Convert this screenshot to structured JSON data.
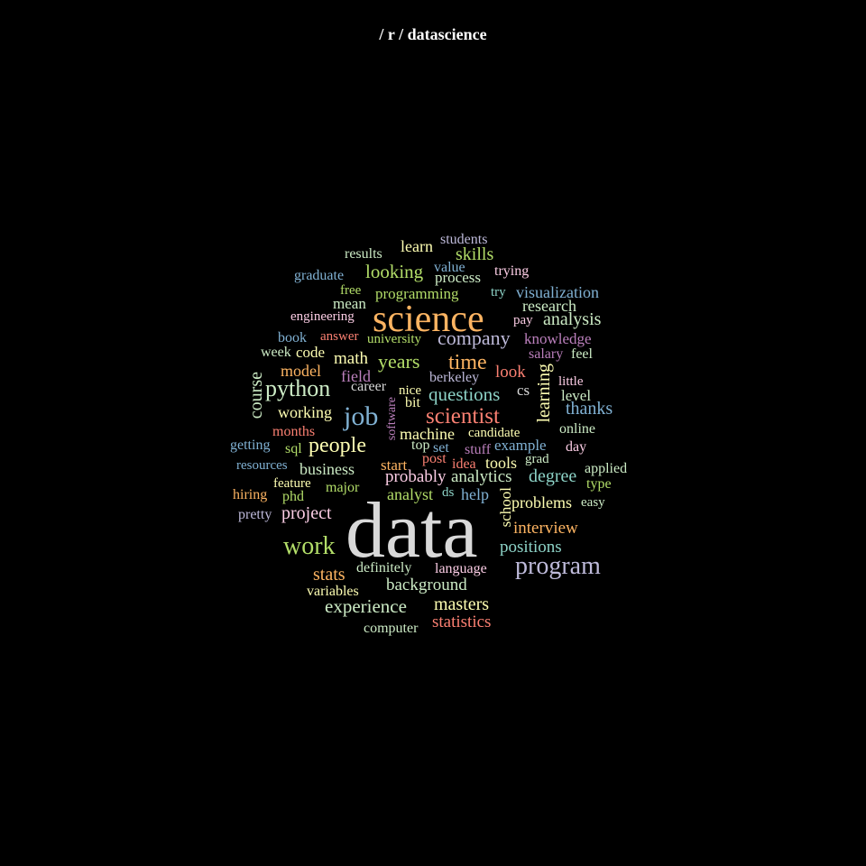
{
  "title": "/ r / datascience",
  "palette": {
    "green": "#b3de69",
    "mint": "#ccebc5",
    "teal": "#8dd3c7",
    "yellow": "#ffffb3",
    "orange": "#fdb462",
    "red": "#fb8072",
    "blue": "#80b1d3",
    "lavender": "#bebada",
    "purple": "#bc80bd",
    "pink": "#fccde5",
    "gray": "#d9d9d9"
  },
  "words": [
    {
      "text": "data",
      "color": "#d9d9d9"
    },
    {
      "text": "science",
      "color": "#fdb462"
    },
    {
      "text": "job",
      "color": "#80b1d3"
    },
    {
      "text": "program",
      "color": "#bebada"
    },
    {
      "text": "work",
      "color": "#b3de69"
    },
    {
      "text": "python",
      "color": "#ccebc5"
    },
    {
      "text": "scientist",
      "color": "#fb8072"
    },
    {
      "text": "people",
      "color": "#ffffb3"
    },
    {
      "text": "company",
      "color": "#bebada"
    },
    {
      "text": "time",
      "color": "#fdb462"
    },
    {
      "text": "years",
      "color": "#b3de69"
    },
    {
      "text": "questions",
      "color": "#8dd3c7"
    },
    {
      "text": "course",
      "color": "#ccebc5"
    },
    {
      "text": "learning",
      "color": "#ffffb3"
    },
    {
      "text": "experience",
      "color": "#ccebc5"
    },
    {
      "text": "masters",
      "color": "#ffffb3"
    },
    {
      "text": "statistics",
      "color": "#fb8072"
    },
    {
      "text": "analysis",
      "color": "#ccebc5"
    },
    {
      "text": "thanks",
      "color": "#80b1d3"
    },
    {
      "text": "looking",
      "color": "#b3de69"
    },
    {
      "text": "skills",
      "color": "#b3de69"
    },
    {
      "text": "visualization",
      "color": "#80b1d3"
    },
    {
      "text": "project",
      "color": "#fccde5"
    },
    {
      "text": "positions",
      "color": "#8dd3c7"
    },
    {
      "text": "interview",
      "color": "#fdb462"
    },
    {
      "text": "degree",
      "color": "#8dd3c7"
    },
    {
      "text": "analytics",
      "color": "#ccebc5"
    },
    {
      "text": "probably",
      "color": "#fccde5"
    },
    {
      "text": "background",
      "color": "#ccebc5"
    },
    {
      "text": "problems",
      "color": "#ffffb3"
    },
    {
      "text": "machine",
      "color": "#ffffb3"
    },
    {
      "text": "working",
      "color": "#ffffb3"
    },
    {
      "text": "business",
      "color": "#ccebc5"
    },
    {
      "text": "stats",
      "color": "#fdb462"
    },
    {
      "text": "math",
      "color": "#ffffb3"
    },
    {
      "text": "model",
      "color": "#fdb462"
    },
    {
      "text": "look",
      "color": "#fb8072"
    },
    {
      "text": "research",
      "color": "#ccebc5"
    },
    {
      "text": "programming",
      "color": "#b3de69"
    },
    {
      "text": "learn",
      "color": "#ffffb3"
    },
    {
      "text": "mean",
      "color": "#ccebc5"
    },
    {
      "text": "process",
      "color": "#ccebc5"
    },
    {
      "text": "field",
      "color": "#bc80bd"
    },
    {
      "text": "analyst",
      "color": "#b3de69"
    },
    {
      "text": "tools",
      "color": "#ffffb3"
    },
    {
      "text": "help",
      "color": "#80b1d3"
    },
    {
      "text": "school",
      "color": "#ffffb3"
    },
    {
      "text": "language",
      "color": "#fccde5"
    },
    {
      "text": "variables",
      "color": "#ffffb3"
    },
    {
      "text": "computer",
      "color": "#ccebc5"
    },
    {
      "text": "definitely",
      "color": "#ccebc5"
    },
    {
      "text": "knowledge",
      "color": "#bc80bd"
    },
    {
      "text": "example",
      "color": "#80b1d3"
    },
    {
      "text": "start",
      "color": "#fdb462"
    },
    {
      "text": "code",
      "color": "#ffffb3"
    },
    {
      "text": "career",
      "color": "#d9d9d9"
    },
    {
      "text": "students",
      "color": "#bebada"
    },
    {
      "text": "results",
      "color": "#ccebc5"
    },
    {
      "text": "trying",
      "color": "#fccde5"
    },
    {
      "text": "value",
      "color": "#80b1d3"
    },
    {
      "text": "graduate",
      "color": "#80b1d3"
    },
    {
      "text": "free",
      "color": "#b3de69"
    },
    {
      "text": "try",
      "color": "#8dd3c7"
    },
    {
      "text": "engineering",
      "color": "#fccde5"
    },
    {
      "text": "university",
      "color": "#b3de69"
    },
    {
      "text": "pay",
      "color": "#fccde5"
    },
    {
      "text": "book",
      "color": "#80b1d3"
    },
    {
      "text": "answer",
      "color": "#fb8072"
    },
    {
      "text": "week",
      "color": "#ccebc5"
    },
    {
      "text": "salary",
      "color": "#bc80bd"
    },
    {
      "text": "feel",
      "color": "#ccebc5"
    },
    {
      "text": "berkeley",
      "color": "#bebada"
    },
    {
      "text": "nice",
      "color": "#ffffb3"
    },
    {
      "text": "bit",
      "color": "#ffffb3"
    },
    {
      "text": "cs",
      "color": "#d9d9d9"
    },
    {
      "text": "little",
      "color": "#fccde5"
    },
    {
      "text": "level",
      "color": "#ccebc5"
    },
    {
      "text": "software",
      "color": "#bc80bd"
    },
    {
      "text": "online",
      "color": "#ccebc5"
    },
    {
      "text": "months",
      "color": "#fb8072"
    },
    {
      "text": "candidate",
      "color": "#ffffb3"
    },
    {
      "text": "getting",
      "color": "#80b1d3"
    },
    {
      "text": "sql",
      "color": "#b3de69"
    },
    {
      "text": "top",
      "color": "#ccebc5"
    },
    {
      "text": "set",
      "color": "#80b1d3"
    },
    {
      "text": "stuff",
      "color": "#bc80bd"
    },
    {
      "text": "day",
      "color": "#fccde5"
    },
    {
      "text": "post",
      "color": "#fb8072"
    },
    {
      "text": "idea",
      "color": "#fb8072"
    },
    {
      "text": "grad",
      "color": "#ccebc5"
    },
    {
      "text": "resources",
      "color": "#80b1d3"
    },
    {
      "text": "applied",
      "color": "#ccebc5"
    },
    {
      "text": "feature",
      "color": "#ffffb3"
    },
    {
      "text": "major",
      "color": "#b3de69"
    },
    {
      "text": "type",
      "color": "#b3de69"
    },
    {
      "text": "hiring",
      "color": "#fdb462"
    },
    {
      "text": "phd",
      "color": "#b3de69"
    },
    {
      "text": "ds",
      "color": "#8dd3c7"
    },
    {
      "text": "easy",
      "color": "#ccebc5"
    },
    {
      "text": "pretty",
      "color": "#bebada"
    }
  ]
}
